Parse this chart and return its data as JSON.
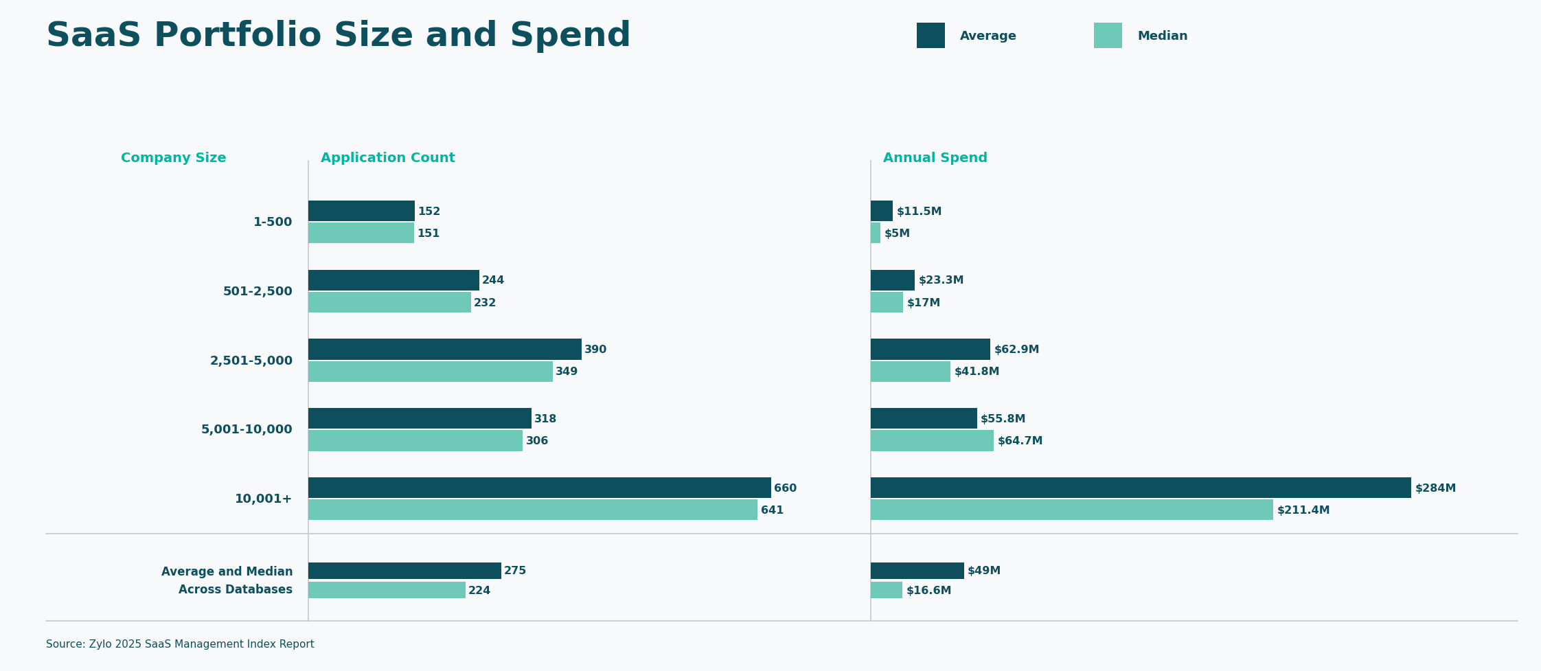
{
  "title": "SaaS Portfolio Size and Spend",
  "title_color": "#0d4f5c",
  "source_text": "Source: Zylo 2025 SaaS Management Index Report",
  "header_color": "#00b5a3",
  "background_color": "#f8f9fa",
  "company_sizes": [
    "1-500",
    "501-2,500",
    "2,501-5,000",
    "5,001-10,000",
    "10,001+"
  ],
  "summary_label": "Average and Median\nAcross Databases",
  "app_count_avg": [
    152,
    244,
    390,
    318,
    660
  ],
  "app_count_med": [
    151,
    232,
    349,
    306,
    641
  ],
  "app_count_avg_summary": 275,
  "app_count_med_summary": 224,
  "annual_spend_avg": [
    11.5,
    23.3,
    62.9,
    55.8,
    284
  ],
  "annual_spend_med": [
    5,
    17,
    41.8,
    64.7,
    211.4
  ],
  "annual_spend_avg_summary": 49,
  "annual_spend_med_summary": 16.6,
  "spend_labels_avg": [
    "$11.5M",
    "$23.3M",
    "$62.9M",
    "$55.8M",
    "$284M"
  ],
  "spend_labels_med": [
    "$5M",
    "$17M",
    "$41.8M",
    "$64.7M",
    "$211.4M"
  ],
  "spend_label_avg_summary": "$49M",
  "spend_label_med_summary": "$16.6M",
  "avg_color": "#0d4f5c",
  "med_color": "#6ec9b8",
  "col_header_app": "Application Count",
  "col_header_spend": "Annual Spend",
  "col_header_size": "Company Size",
  "max_app": 780,
  "max_spend": 340,
  "bar_height": 0.3
}
